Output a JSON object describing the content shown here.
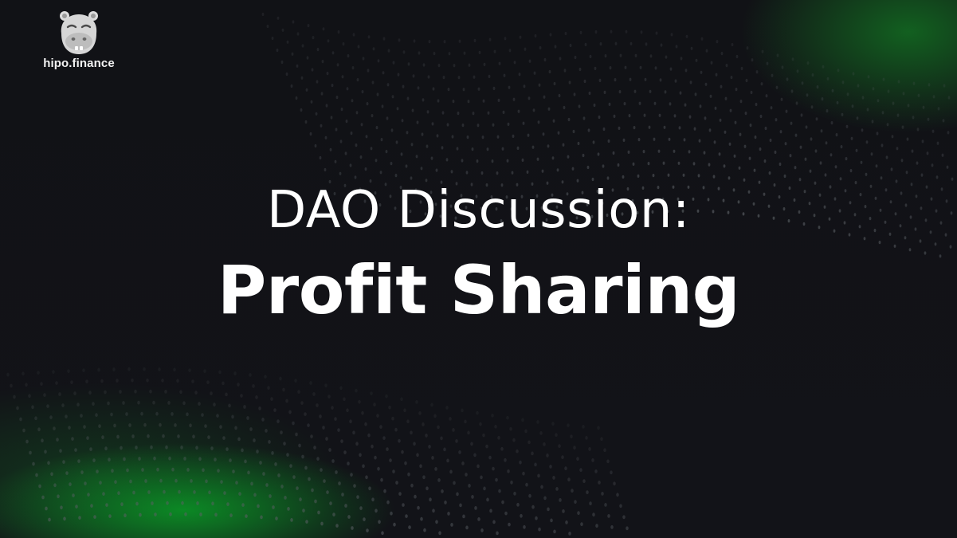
{
  "brand": {
    "name": "hipo.finance",
    "logo_icon": "hippo-icon"
  },
  "headline": {
    "line1": "DAO Discussion:",
    "line2": "Profit Sharing"
  },
  "colors": {
    "background": "#111216",
    "accent_green": "#19a83a",
    "text": "#ffffff",
    "dots": "#5c6066"
  }
}
